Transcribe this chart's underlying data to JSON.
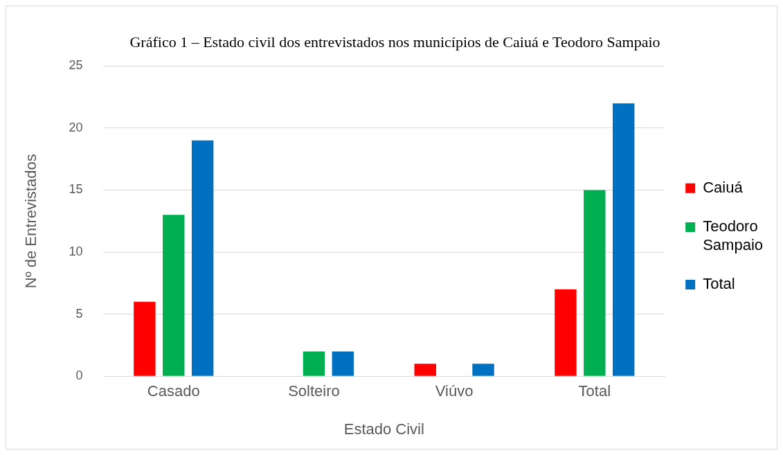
{
  "chart_data": {
    "type": "bar",
    "title": "Gráfico 1 – Estado civil dos entrevistados nos municípios de Caiuá e Teodoro Sampaio",
    "xlabel": "Estado Civil",
    "ylabel": "Nº de Entrevistados",
    "categories": [
      "Casado",
      "Solteiro",
      "Viúvo",
      "Total"
    ],
    "series": [
      {
        "name": "Caiuá",
        "color": "#ff0000",
        "values": [
          6,
          0,
          1,
          7
        ]
      },
      {
        "name": "Teodoro Sampaio",
        "color": "#00b050",
        "values": [
          13,
          2,
          0,
          15
        ]
      },
      {
        "name": "Total",
        "color": "#0070c0",
        "values": [
          19,
          2,
          1,
          22
        ]
      }
    ],
    "ylim": [
      0,
      25
    ],
    "yticks": [
      0,
      5,
      10,
      15,
      20,
      25
    ],
    "grid": "y",
    "legend": "right"
  }
}
